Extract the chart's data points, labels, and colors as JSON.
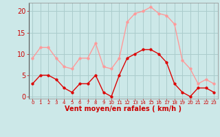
{
  "x": [
    0,
    1,
    2,
    3,
    4,
    5,
    6,
    7,
    8,
    9,
    10,
    11,
    12,
    13,
    14,
    15,
    16,
    17,
    18,
    19,
    20,
    21,
    22,
    23
  ],
  "wind_mean": [
    3,
    5,
    5,
    4,
    2,
    1,
    3,
    3,
    5,
    1,
    0,
    5,
    9,
    10,
    11,
    11,
    10,
    8,
    3,
    1,
    0,
    2,
    2,
    1
  ],
  "wind_gust": [
    9,
    11.5,
    11.5,
    9,
    7,
    6.5,
    9,
    9,
    12.5,
    7,
    6.5,
    9,
    17.5,
    19.5,
    20,
    21,
    19.5,
    19,
    17,
    8.5,
    6.5,
    3,
    4,
    3
  ],
  "bg_color": "#cce8e8",
  "grid_color": "#aacccc",
  "line_mean_color": "#dd0000",
  "line_gust_color": "#ff9999",
  "xlabel": "Vent moyen/en rafales ( km/h )",
  "xlabel_color": "#cc0000",
  "yticks": [
    0,
    5,
    10,
    15,
    20
  ],
  "ylim": [
    -0.5,
    22
  ],
  "xlim": [
    -0.5,
    23.5
  ],
  "tick_color": "#cc0000",
  "ylabel_fontsize": 6,
  "xlabel_fontsize": 7,
  "tick_fontsize_x": 5,
  "tick_fontsize_y": 7
}
